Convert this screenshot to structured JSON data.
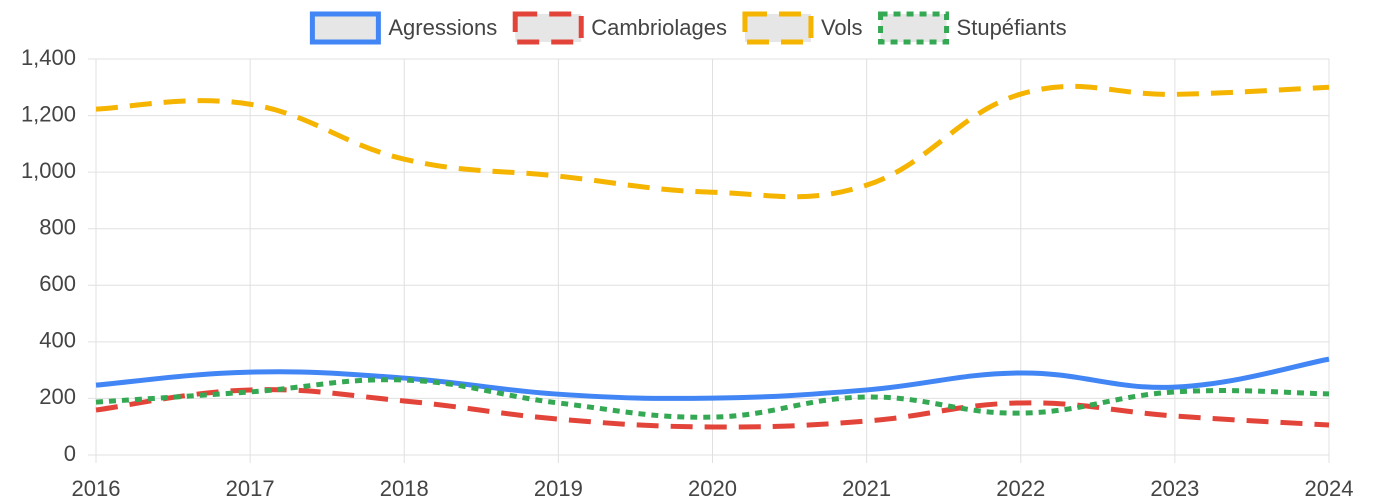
{
  "chart_data": {
    "type": "line",
    "categories": [
      "2016",
      "2017",
      "2018",
      "2019",
      "2020",
      "2021",
      "2022",
      "2023",
      "2024"
    ],
    "series": [
      {
        "name": "Agressions",
        "color": "#4285f4",
        "style": "solid",
        "values": [
          247,
          293,
          272,
          215,
          201,
          230,
          290,
          240,
          339
        ]
      },
      {
        "name": "Cambriolages",
        "color": "#e3443a",
        "style": "dashed",
        "values": [
          159,
          230,
          191,
          127,
          99,
          120,
          184,
          138,
          106
        ]
      },
      {
        "name": "Vols",
        "color": "#f4b400",
        "style": "dashed",
        "values": [
          1223,
          1240,
          1046,
          986,
          929,
          954,
          1276,
          1275,
          1300
        ]
      },
      {
        "name": "Stupéfiants",
        "color": "#34a853",
        "style": "dotted",
        "values": [
          187,
          223,
          265,
          184,
          134,
          205,
          148,
          223,
          216
        ]
      }
    ],
    "ylim": [
      0,
      1400
    ],
    "yticks": [
      0,
      200,
      400,
      600,
      800,
      {
        "value": 1000,
        "label": "1,000"
      },
      {
        "value": 1200,
        "label": "1,200"
      },
      {
        "value": 1400,
        "label": "1,400"
      }
    ],
    "grid": true,
    "legend": "top"
  }
}
